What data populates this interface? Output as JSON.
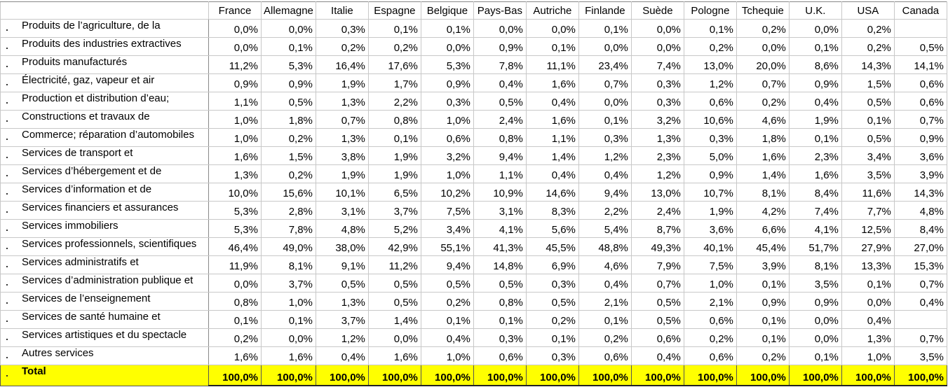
{
  "table": {
    "header": [
      "France",
      "Allemagne",
      "Italie",
      "Espagne",
      "Belgique",
      "Pays-Bas",
      "Autriche",
      "Finlande",
      "Suède",
      "Pologne",
      "Tchequie",
      "U.K.",
      "USA",
      "Canada"
    ],
    "rows": [
      {
        "label": "Produits de l’agriculture, de la",
        "values": [
          "0,0%",
          "0,0%",
          "0,3%",
          "0,1%",
          "0,1%",
          "0,0%",
          "0,0%",
          "0,1%",
          "0,0%",
          "0,1%",
          "0,2%",
          "0,0%",
          "0,2%",
          null
        ]
      },
      {
        "label": "Produits des industries extractives",
        "values": [
          "0,0%",
          "0,1%",
          "0,2%",
          "0,2%",
          "0,0%",
          "0,9%",
          "0,1%",
          "0,0%",
          "0,0%",
          "0,2%",
          "0,0%",
          "0,1%",
          "0,2%",
          "0,5%"
        ]
      },
      {
        "label": "Produits manufacturés",
        "values": [
          "11,2%",
          "5,3%",
          "16,4%",
          "17,6%",
          "5,3%",
          "7,8%",
          "11,1%",
          "23,4%",
          "7,4%",
          "13,0%",
          "20,0%",
          "8,6%",
          "14,3%",
          "14,1%"
        ]
      },
      {
        "label": "Électricité, gaz, vapeur et air",
        "values": [
          "0,9%",
          "0,9%",
          "1,9%",
          "1,7%",
          "0,9%",
          "0,4%",
          "1,6%",
          "0,7%",
          "0,3%",
          "1,2%",
          "0,7%",
          "0,9%",
          "1,5%",
          "0,6%"
        ]
      },
      {
        "label": "Production et distribution d’eau;",
        "values": [
          "1,1%",
          "0,5%",
          "1,3%",
          "2,2%",
          "0,3%",
          "0,5%",
          "0,4%",
          "0,0%",
          "0,3%",
          "0,6%",
          "0,2%",
          "0,4%",
          "0,5%",
          "0,6%"
        ]
      },
      {
        "label": "Constructions et travaux de",
        "values": [
          "1,0%",
          "1,8%",
          "0,7%",
          "0,8%",
          "1,0%",
          "2,4%",
          "1,6%",
          "0,1%",
          "3,2%",
          "10,6%",
          "4,6%",
          "1,9%",
          "0,1%",
          "0,7%"
        ]
      },
      {
        "label": "Commerce; réparation d’automobiles",
        "values": [
          "1,0%",
          "0,2%",
          "1,3%",
          "0,1%",
          "0,6%",
          "0,8%",
          "1,1%",
          "0,3%",
          "1,3%",
          "0,3%",
          "1,8%",
          "0,1%",
          "0,5%",
          "0,9%"
        ]
      },
      {
        "label": "Services de transport et",
        "values": [
          "1,6%",
          "1,5%",
          "3,8%",
          "1,9%",
          "3,2%",
          "9,4%",
          "1,4%",
          "1,2%",
          "2,3%",
          "5,0%",
          "1,6%",
          "2,3%",
          "3,4%",
          "3,6%"
        ]
      },
      {
        "label": "Services d’hébergement et de",
        "values": [
          "1,3%",
          "0,2%",
          "1,9%",
          "1,9%",
          "1,0%",
          "1,1%",
          "0,4%",
          "0,4%",
          "1,2%",
          "0,9%",
          "1,4%",
          "1,6%",
          "3,5%",
          "3,9%"
        ]
      },
      {
        "label": "Services d’information et de",
        "values": [
          "10,0%",
          "15,6%",
          "10,1%",
          "6,5%",
          "10,2%",
          "10,9%",
          "14,6%",
          "9,4%",
          "13,0%",
          "10,7%",
          "8,1%",
          "8,4%",
          "11,6%",
          "14,3%"
        ]
      },
      {
        "label": "Services financiers et assurances",
        "values": [
          "5,3%",
          "2,8%",
          "3,1%",
          "3,7%",
          "7,5%",
          "3,1%",
          "8,3%",
          "2,2%",
          "2,4%",
          "1,9%",
          "4,2%",
          "7,4%",
          "7,7%",
          "4,8%"
        ]
      },
      {
        "label": "Services immobiliers",
        "values": [
          "5,3%",
          "7,8%",
          "4,8%",
          "5,2%",
          "3,4%",
          "4,1%",
          "5,6%",
          "5,4%",
          "8,7%",
          "3,6%",
          "6,6%",
          "4,1%",
          "12,5%",
          "8,4%"
        ]
      },
      {
        "label": "Services professionnels, scientifiques",
        "values": [
          "46,4%",
          "49,0%",
          "38,0%",
          "42,9%",
          "55,1%",
          "41,3%",
          "45,5%",
          "48,8%",
          "49,3%",
          "40,1%",
          "45,4%",
          "51,7%",
          "27,9%",
          "27,0%"
        ]
      },
      {
        "label": "Services administratifs et",
        "values": [
          "11,9%",
          "8,1%",
          "9,1%",
          "11,2%",
          "9,4%",
          "14,8%",
          "6,9%",
          "4,6%",
          "7,9%",
          "7,5%",
          "3,9%",
          "8,1%",
          "13,3%",
          "15,3%"
        ]
      },
      {
        "label": "Services d’administration publique et",
        "values": [
          "0,0%",
          "3,7%",
          "0,5%",
          "0,5%",
          "0,5%",
          "0,5%",
          "0,3%",
          "0,4%",
          "0,7%",
          "1,0%",
          "0,1%",
          "3,5%",
          "0,1%",
          "0,7%"
        ]
      },
      {
        "label": "Services de l’enseignement",
        "values": [
          "0,8%",
          "1,0%",
          "1,3%",
          "0,5%",
          "0,2%",
          "0,8%",
          "0,5%",
          "2,1%",
          "0,5%",
          "2,1%",
          "0,9%",
          "0,9%",
          "0,0%",
          "0,4%"
        ]
      },
      {
        "label": "Services de santé humaine et",
        "values": [
          "0,1%",
          "0,1%",
          "3,7%",
          "1,4%",
          "0,1%",
          "0,1%",
          "0,2%",
          "0,1%",
          "0,5%",
          "0,6%",
          "0,1%",
          "0,0%",
          "0,4%",
          null
        ]
      },
      {
        "label": "Services artistiques et du spectacle",
        "values": [
          "0,2%",
          "0,0%",
          "1,2%",
          "0,0%",
          "0,4%",
          "0,3%",
          "0,1%",
          "0,2%",
          "0,6%",
          "0,2%",
          "0,1%",
          "0,0%",
          "1,3%",
          "0,7%"
        ]
      },
      {
        "label": "Autres services",
        "values": [
          "1,6%",
          "1,6%",
          "0,4%",
          "1,6%",
          "1,0%",
          "0,6%",
          "0,3%",
          "0,6%",
          "0,4%",
          "0,6%",
          "0,2%",
          "0,1%",
          "1,0%",
          "3,5%"
        ]
      }
    ],
    "total": {
      "label": "Total",
      "values": [
        "100,0%",
        "100,0%",
        "100,0%",
        "100,0%",
        "100,0%",
        "100,0%",
        "100,0%",
        "100,0%",
        "100,0%",
        "100,0%",
        "100,0%",
        "100,0%",
        "100,0%",
        "100,0%"
      ]
    }
  }
}
